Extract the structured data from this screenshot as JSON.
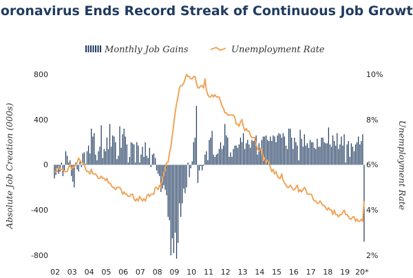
{
  "chart_data": {
    "type": "bar",
    "title": "Coronavirus Ends Record Streak of Continuous Job Growth",
    "ylabel_left": "Absolute Job Creation (000s)",
    "ylabel_right": "Unemployment Rate",
    "legend": [
      {
        "name": "Monthly Job Gains",
        "color": "#1f3a5f",
        "kind": "bar"
      },
      {
        "name": "Unemployment Rate",
        "color": "#f0a458",
        "kind": "line"
      }
    ],
    "legend_position": "top-center",
    "ylim_left": [
      -800,
      800
    ],
    "ylim_right": [
      2,
      10
    ],
    "yticks_left": [
      "800",
      "400",
      "0",
      "-400",
      "-800"
    ],
    "yticks_right": [
      "10%",
      "8%",
      "6%",
      "4%",
      "2%"
    ],
    "xtick_labels": [
      "02",
      "03",
      "04",
      "05",
      "06",
      "07",
      "08",
      "09",
      "10",
      "11",
      "12",
      "13",
      "14",
      "15",
      "16",
      "17",
      "18",
      "19",
      "20*"
    ],
    "x_start_year": 2002,
    "grid": false,
    "series": [
      {
        "name": "Monthly Job Gains",
        "type": "bar",
        "color": "#1f3a5f",
        "values": [
          -120,
          -90,
          -30,
          -80,
          -60,
          20,
          -100,
          -50,
          120,
          80,
          20,
          40,
          -100,
          -150,
          -200,
          20,
          -40,
          -60,
          30,
          -20,
          100,
          110,
          10,
          120,
          170,
          100,
          320,
          250,
          280,
          90,
          40,
          120,
          160,
          350,
          60,
          140,
          120,
          240,
          140,
          360,
          160,
          260,
          250,
          200,
          50,
          80,
          340,
          150,
          270,
          320,
          250,
          180,
          20,
          70,
          200,
          190,
          180,
          20,
          200,
          170,
          20,
          90,
          160,
          70,
          200,
          80,
          60,
          150,
          -20,
          90,
          100,
          60,
          -50,
          -80,
          -100,
          -240,
          -210,
          -180,
          -220,
          -270,
          -460,
          -490,
          -800,
          -650,
          -780,
          -600,
          -830,
          -690,
          -340,
          -460,
          -340,
          -210,
          -250,
          -200,
          20,
          -110,
          -30,
          30,
          200,
          240,
          520,
          -160,
          -50,
          -10,
          -50,
          -10,
          90,
          120,
          40,
          220,
          240,
          300,
          90,
          70,
          90,
          100,
          140,
          200,
          140,
          170,
          360,
          260,
          240,
          70,
          110,
          70,
          140,
          170,
          170,
          150,
          180,
          240,
          200,
          280,
          140,
          190,
          220,
          180,
          150,
          220,
          210,
          220,
          260,
          90,
          190,
          150,
          220,
          250,
          250,
          260,
          220,
          210,
          250,
          210,
          260,
          250,
          200,
          260,
          280,
          270,
          240,
          280,
          250,
          170,
          140,
          320,
          320,
          240,
          140,
          240,
          200,
          170,
          40,
          310,
          230,
          160,
          270,
          170,
          190,
          150,
          220,
          200,
          200,
          150,
          140,
          230,
          160,
          160,
          240,
          240,
          200,
          190,
          190,
          330,
          180,
          160,
          260,
          210,
          170,
          280,
          140,
          180,
          250,
          170,
          270,
          20,
          180,
          210,
          70,
          190,
          160,
          120,
          180,
          200,
          250,
          180,
          210,
          270,
          -680
        ]
      },
      {
        "name": "Unemployment Rate",
        "type": "line",
        "color": "#f0a458",
        "values": [
          5.7,
          5.7,
          5.7,
          5.9,
          5.8,
          5.8,
          5.8,
          5.7,
          5.7,
          5.7,
          5.9,
          6.0,
          5.8,
          5.9,
          5.9,
          6.0,
          6.1,
          6.3,
          6.2,
          6.1,
          6.1,
          6.0,
          5.8,
          5.7,
          5.7,
          5.6,
          5.8,
          5.6,
          5.6,
          5.6,
          5.5,
          5.4,
          5.4,
          5.5,
          5.4,
          5.4,
          5.3,
          5.4,
          5.2,
          5.2,
          5.1,
          5.0,
          5.0,
          4.9,
          5.0,
          5.0,
          5.0,
          4.9,
          4.7,
          4.8,
          4.7,
          4.7,
          4.6,
          4.6,
          4.7,
          4.7,
          4.5,
          4.4,
          4.5,
          4.4,
          4.6,
          4.5,
          4.4,
          4.5,
          4.4,
          4.6,
          4.7,
          4.6,
          4.7,
          4.7,
          4.7,
          5.0,
          5.0,
          4.9,
          5.1,
          5.0,
          5.4,
          5.6,
          5.8,
          6.1,
          6.1,
          6.5,
          6.8,
          7.3,
          7.8,
          8.3,
          8.7,
          9.0,
          9.4,
          9.5,
          9.5,
          9.6,
          9.8,
          10.0,
          9.9,
          9.9,
          9.8,
          9.8,
          9.9,
          9.9,
          9.6,
          9.4,
          9.4,
          9.5,
          9.5,
          9.4,
          9.8,
          9.3,
          9.1,
          9.0,
          9.0,
          9.1,
          9.0,
          9.1,
          9.0,
          9.0,
          9.0,
          8.8,
          8.6,
          8.5,
          8.3,
          8.3,
          8.2,
          8.2,
          8.2,
          8.2,
          8.2,
          8.1,
          7.8,
          7.8,
          7.7,
          7.9,
          8.0,
          7.7,
          7.5,
          7.6,
          7.5,
          7.5,
          7.3,
          7.2,
          7.2,
          7.2,
          6.9,
          6.7,
          6.6,
          6.7,
          6.7,
          6.2,
          6.3,
          6.1,
          6.2,
          6.1,
          5.9,
          5.7,
          5.8,
          5.6,
          5.7,
          5.5,
          5.4,
          5.4,
          5.6,
          5.3,
          5.2,
          5.1,
          5.0,
          5.0,
          5.1,
          5.0,
          4.9,
          4.9,
          5.0,
          5.1,
          4.8,
          4.9,
          4.8,
          4.9,
          5.0,
          4.9,
          4.7,
          4.7,
          4.7,
          4.7,
          4.5,
          4.4,
          4.4,
          4.3,
          4.3,
          4.4,
          4.3,
          4.2,
          4.2,
          4.1,
          4.0,
          4.1,
          4.0,
          4.0,
          3.8,
          4.0,
          3.8,
          3.8,
          3.7,
          3.8,
          3.8,
          3.9,
          4.0,
          3.8,
          3.8,
          3.7,
          3.6,
          3.6,
          3.7,
          3.7,
          3.5,
          3.6,
          3.5,
          3.5,
          3.6,
          3.5,
          4.4
        ]
      }
    ]
  }
}
